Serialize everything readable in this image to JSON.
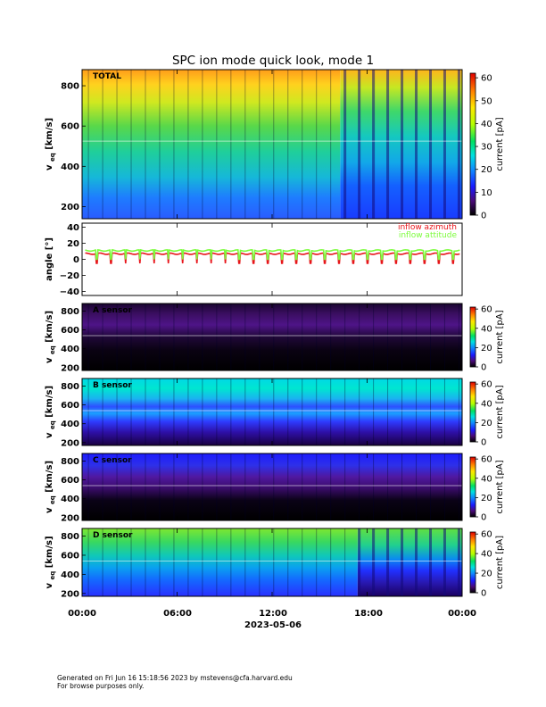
{
  "chart_data": {
    "type": "heatmap",
    "title": "SPC ion mode quick look, mode 1",
    "time_axis": {
      "ticks": [
        "00:00",
        "06:00",
        "12:00",
        "18:00",
        "00:00"
      ],
      "date_label": "2023-05-06",
      "range_hours": [
        0,
        24
      ]
    },
    "panels": [
      {
        "id": "total",
        "type": "heatmap",
        "label": "TOTAL",
        "ylabel_main": "v",
        "ylabel_sub": "eq",
        "ylabel_unit": "[km/s]",
        "yticks": [
          "200",
          "400",
          "600",
          "800"
        ],
        "ylim": [
          140,
          880
        ],
        "colorbar": {
          "label": "current [pA]",
          "ticks": [
            "0",
            "10",
            "20",
            "30",
            "40",
            "50",
            "60"
          ],
          "range": [
            0,
            62
          ]
        },
        "regime_change_hour": 16.3
      },
      {
        "id": "angle",
        "type": "line",
        "ylabel": "angle [°]",
        "yticks": [
          "−40",
          "−20",
          "0",
          "20",
          "40"
        ],
        "ylim": [
          -45,
          45
        ],
        "series": [
          {
            "name": "inflow azimuth",
            "color": "#e8141a",
            "typical_value": 7,
            "dip_value": -5
          },
          {
            "name": "inflow attitude",
            "color": "#7cfc3c",
            "typical_value": 11,
            "dip_value": 0
          }
        ]
      },
      {
        "id": "a",
        "type": "heatmap",
        "label": "A sensor",
        "ylabel_main": "v",
        "ylabel_sub": "eq",
        "ylabel_unit": "[km/s]",
        "yticks": [
          "200",
          "400",
          "600",
          "800"
        ],
        "ylim": [
          170,
          880
        ],
        "colorbar": {
          "label": "current [pA]",
          "ticks": [
            "0",
            "20",
            "40",
            "60"
          ],
          "range": [
            0,
            62
          ]
        }
      },
      {
        "id": "b",
        "type": "heatmap",
        "label": "B sensor",
        "ylabel_main": "v",
        "ylabel_sub": "eq",
        "ylabel_unit": "[km/s]",
        "yticks": [
          "200",
          "400",
          "600",
          "800"
        ],
        "ylim": [
          170,
          880
        ],
        "colorbar": {
          "label": "current [pA]",
          "ticks": [
            "0",
            "20",
            "40",
            "60"
          ],
          "range": [
            0,
            62
          ]
        }
      },
      {
        "id": "c",
        "type": "heatmap",
        "label": "C sensor",
        "ylabel_main": "v",
        "ylabel_sub": "eq",
        "ylabel_unit": "[km/s]",
        "yticks": [
          "200",
          "400",
          "600",
          "800"
        ],
        "ylim": [
          170,
          880
        ],
        "colorbar": {
          "label": "current [pA]",
          "ticks": [
            "0",
            "20",
            "40",
            "60"
          ],
          "range": [
            0,
            62
          ]
        }
      },
      {
        "id": "d",
        "type": "heatmap",
        "label": "D sensor",
        "ylabel_main": "v",
        "ylabel_sub": "eq",
        "ylabel_unit": "[km/s]",
        "yticks": [
          "200",
          "400",
          "600",
          "800"
        ],
        "ylim": [
          170,
          880
        ],
        "colorbar": {
          "label": "current [pA]",
          "ticks": [
            "0",
            "20",
            "40",
            "60"
          ],
          "range": [
            0,
            62
          ]
        },
        "regime_change_hour": 17.4
      }
    ]
  },
  "footer": {
    "line1": "Generated on Fri Jun 16 15:18:56 2023 by mstevens@cfa.harvard.edu",
    "line2": "For browse purposes only."
  }
}
